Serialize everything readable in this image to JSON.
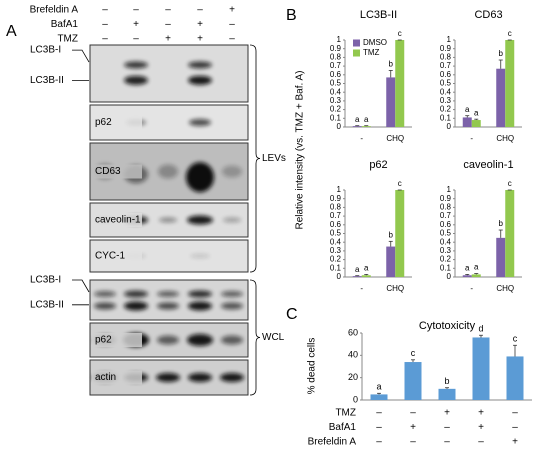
{
  "panel_labels": [
    "A",
    "B",
    "C"
  ],
  "blot_panel": {
    "conditions": [
      {
        "name": "Brefeldin A",
        "signs": [
          "–",
          "–",
          "–",
          "–",
          "+"
        ]
      },
      {
        "name": "BafA1",
        "signs": [
          "–",
          "+",
          "–",
          "+",
          "–"
        ]
      },
      {
        "name": "TMZ",
        "signs": [
          "–",
          "–",
          "+",
          "+",
          "–"
        ]
      }
    ],
    "blots": [
      {
        "labels": [
          "LC3B-I",
          "LC3B-II"
        ]
      },
      {
        "labels": [
          "p62"
        ]
      },
      {
        "labels": [
          "CD63"
        ]
      },
      {
        "labels": [
          "caveolin-1"
        ]
      },
      {
        "labels": [
          "CYC-1"
        ]
      },
      {
        "labels": [
          "LC3B-I",
          "LC3B-II"
        ]
      },
      {
        "labels": [
          "p62"
        ]
      },
      {
        "labels": [
          "actin"
        ]
      }
    ],
    "groups": [
      "LEVs",
      "WCL"
    ]
  },
  "chart_data": [
    {
      "type": "bar",
      "title": "LC3B-II",
      "ylabel": "Relative intensity (vs. TMZ + Baf. A)",
      "categories": [
        "-",
        "CHQ"
      ],
      "series": [
        {
          "name": "DMSO",
          "color": "#7c62a9",
          "values": [
            0.01,
            0.57
          ],
          "errors": [
            0.005,
            0.08
          ],
          "letters": [
            "a",
            "b"
          ]
        },
        {
          "name": "TMZ",
          "color": "#92c84e",
          "values": [
            0.01,
            1.0
          ],
          "errors": [
            0.005,
            0
          ],
          "letters": [
            "a",
            "c"
          ]
        }
      ],
      "ylim": [
        0,
        1
      ],
      "yticks": [
        0,
        0.1,
        0.2,
        0.3,
        0.4,
        0.5,
        0.6,
        0.7,
        0.8,
        0.9,
        1
      ],
      "legend": "top-left"
    },
    {
      "type": "bar",
      "title": "CD63",
      "categories": [
        "-",
        "CHQ"
      ],
      "series": [
        {
          "color": "#7c62a9",
          "values": [
            0.11,
            0.67
          ],
          "errors": [
            0.02,
            0.1
          ],
          "letters": [
            "a",
            "b"
          ]
        },
        {
          "color": "#92c84e",
          "values": [
            0.08,
            1.0
          ],
          "errors": [
            0.01,
            0
          ],
          "letters": [
            "a",
            "c"
          ]
        }
      ],
      "ylim": [
        0,
        1
      ],
      "yticks": [
        0,
        0.1,
        0.2,
        0.3,
        0.4,
        0.5,
        0.6,
        0.7,
        0.8,
        0.9,
        1
      ]
    },
    {
      "type": "bar",
      "title": "p62",
      "categories": [
        "-",
        "CHQ"
      ],
      "series": [
        {
          "color": "#7c62a9",
          "values": [
            0.01,
            0.35
          ],
          "errors": [
            0.005,
            0.06
          ],
          "letters": [
            "a",
            "b"
          ]
        },
        {
          "color": "#92c84e",
          "values": [
            0.02,
            1.0
          ],
          "errors": [
            0.01,
            0
          ],
          "letters": [
            "a",
            "c"
          ]
        }
      ],
      "ylim": [
        0,
        1
      ],
      "yticks": [
        0,
        0.1,
        0.2,
        0.3,
        0.4,
        0.5,
        0.6,
        0.7,
        0.8,
        0.9,
        1
      ]
    },
    {
      "type": "bar",
      "title": "caveolin-1",
      "categories": [
        "-",
        "CHQ"
      ],
      "series": [
        {
          "color": "#7c62a9",
          "values": [
            0.02,
            0.45
          ],
          "errors": [
            0.01,
            0.09
          ],
          "letters": [
            "a",
            "b"
          ]
        },
        {
          "color": "#92c84e",
          "values": [
            0.03,
            1.0
          ],
          "errors": [
            0.01,
            0
          ],
          "letters": [
            "a",
            "c"
          ]
        }
      ],
      "ylim": [
        0,
        1
      ],
      "yticks": [
        0,
        0.1,
        0.2,
        0.3,
        0.4,
        0.5,
        0.6,
        0.7,
        0.8,
        0.9,
        1
      ]
    },
    {
      "type": "bar",
      "title": "Cytotoxicity",
      "ylabel": "% dead cells",
      "series": [
        {
          "color": "#5b9bd5",
          "values": [
            5,
            34,
            10,
            56,
            39
          ],
          "errors": [
            1,
            2,
            1,
            2,
            10
          ],
          "letters": [
            "a",
            "c",
            "b",
            "d",
            "c"
          ]
        }
      ],
      "conditions": [
        {
          "name": "TMZ",
          "signs": [
            "–",
            "–",
            "+",
            "+",
            "–"
          ]
        },
        {
          "name": "BafA1",
          "signs": [
            "–",
            "+",
            "–",
            "+",
            "–"
          ]
        },
        {
          "name": "Brefeldin A",
          "signs": [
            "–",
            "–",
            "–",
            "–",
            "+"
          ]
        }
      ],
      "ylim": [
        0,
        60
      ],
      "yticks": [
        0,
        20,
        40,
        60
      ]
    }
  ]
}
